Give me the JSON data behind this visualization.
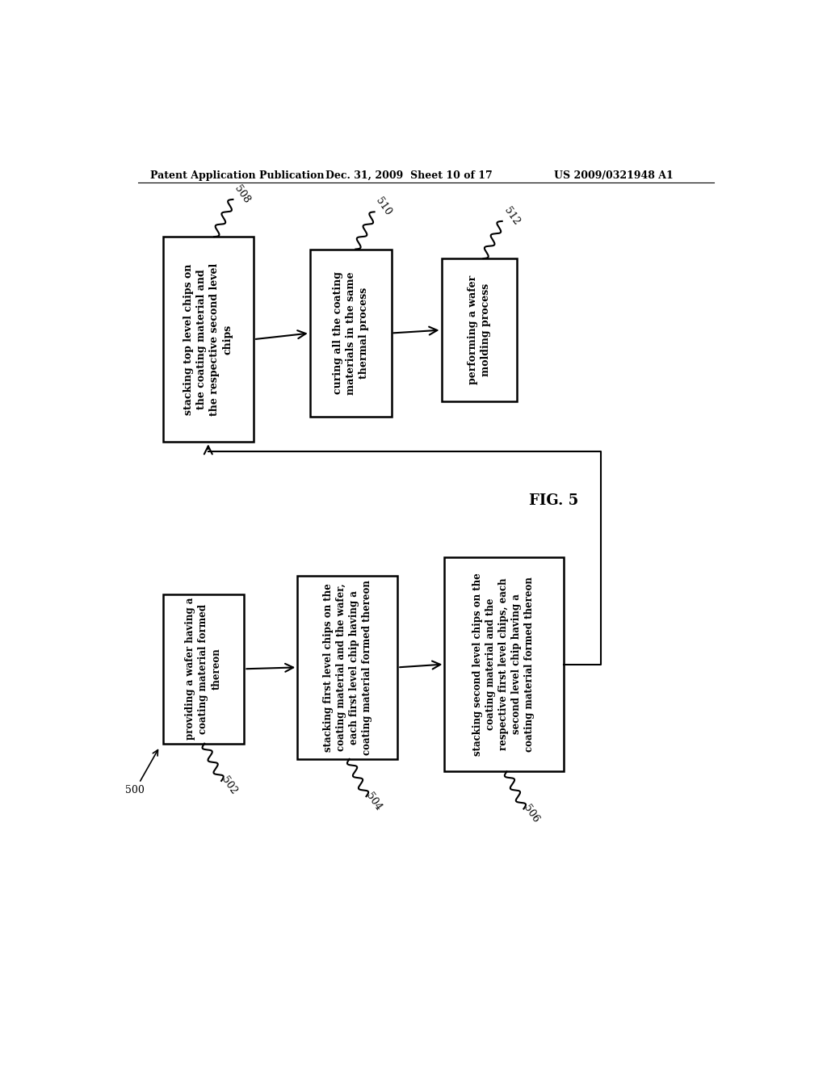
{
  "header_left": "Patent Application Publication",
  "header_center": "Dec. 31, 2009  Sheet 10 of 17",
  "header_right": "US 2009/0321948 A1",
  "fig_label": "FIG. 5",
  "background_color": "#ffffff",
  "box_508_text": "stacking top level chips on\nthe coating material and\nthe respective second level\nchips",
  "box_510_text": "curing all the coating\nmaterials in the same\nthermal process",
  "box_512_text": "performing a wafer\nmolding process",
  "box_502_text": "providing a wafer having a\ncoating material formed\nthereon",
  "box_504_text": "stacking first level chips on the\ncoating material and the wafer,\neach first level chip having a\ncoating material formed thereon",
  "box_506_text": "stacking second level chips on the\ncoating material and the\nrespective first level chips, each\nsecond level chip having a\ncoating material formed thereon"
}
